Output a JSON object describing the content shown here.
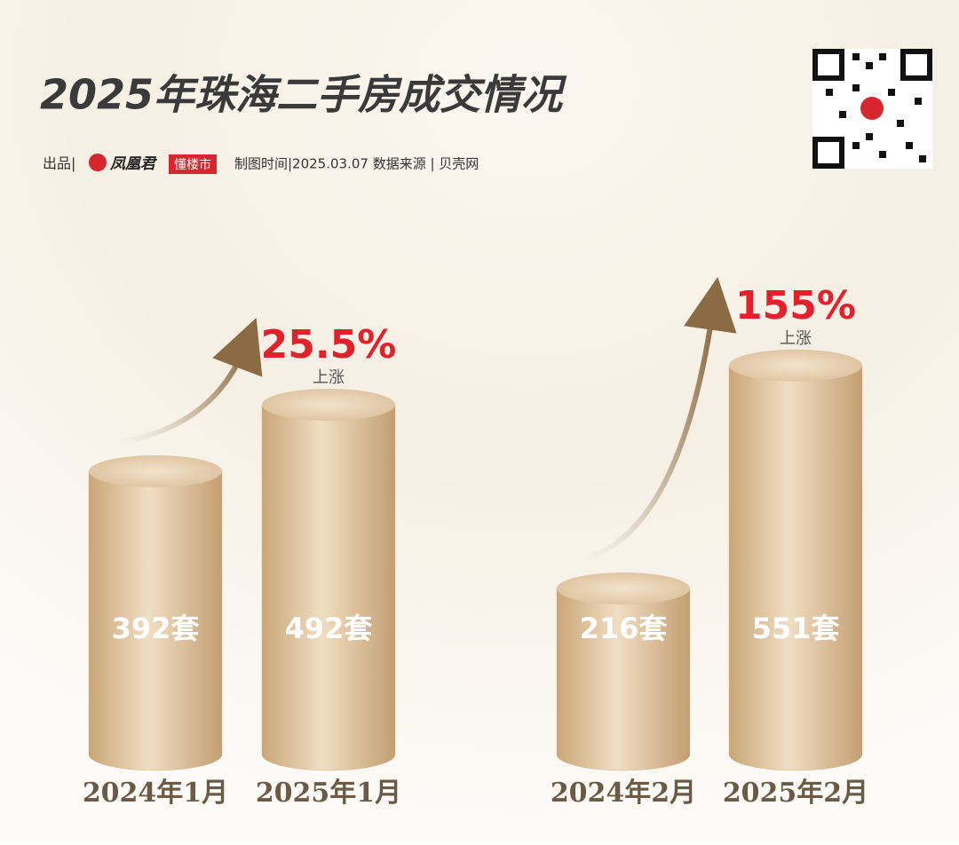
{
  "header": {
    "title": "2025年珠海二手房成交情况",
    "credit_prefix": "出品|",
    "brand": "凤凰君",
    "brand_tag": "懂楼市",
    "meta": "制图时间|2025.03.07 数据来源 | 贝壳网"
  },
  "chart_data": [
    {
      "type": "cylinder",
      "categories": [
        "2024年1月",
        "2025年1月"
      ],
      "values": [
        392,
        492
      ],
      "value_labels": [
        "392套",
        "492套"
      ],
      "color": "#d6b68c",
      "annotation": "25.5%",
      "annotation_note": "上涨"
    },
    {
      "type": "cylinder",
      "categories": [
        "2024年2月",
        "2025年2月"
      ],
      "values": [
        216,
        551
      ],
      "value_labels": [
        "216套",
        "551套"
      ],
      "color": "#d6b68c",
      "annotation": "155%",
      "annotation_note": "上涨"
    }
  ]
}
